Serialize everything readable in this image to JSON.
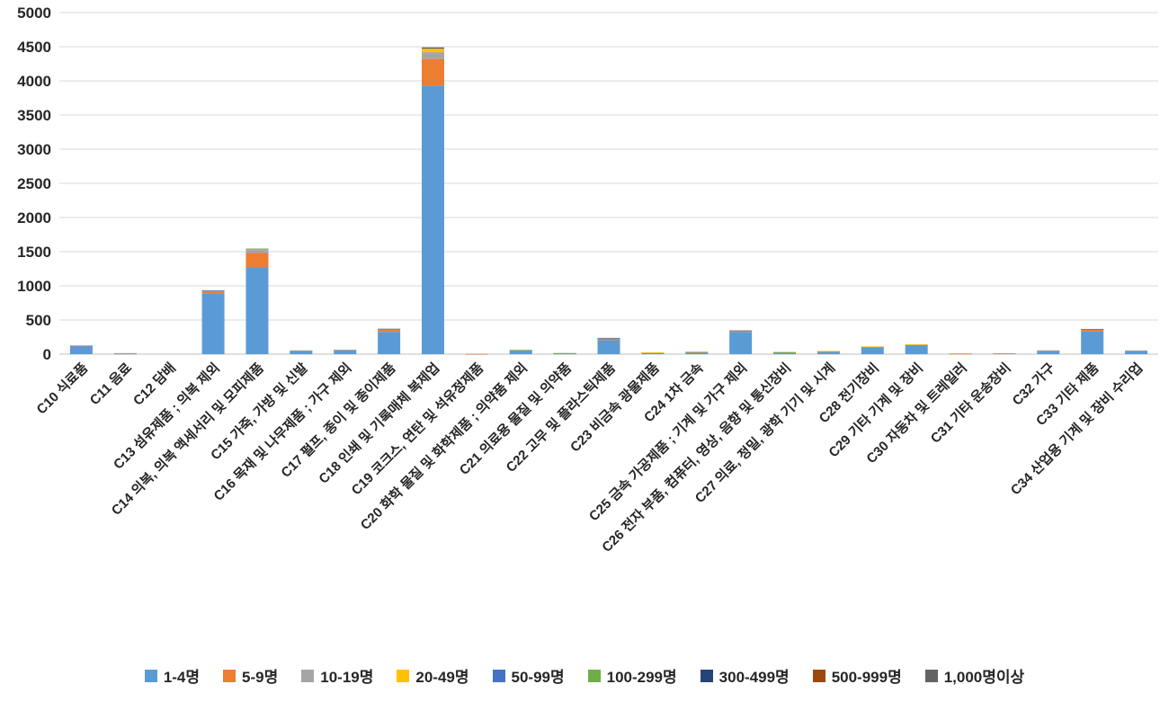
{
  "page": {
    "background": "#FFFFFF"
  },
  "chart_data": {
    "type": "bar",
    "stacked": true,
    "title": "",
    "xlabel": "",
    "ylabel": "",
    "grid": true,
    "legend_position": "bottom",
    "ylim": [
      0,
      5000
    ],
    "yticks": [
      0,
      500,
      1000,
      1500,
      2000,
      2500,
      3000,
      3500,
      4000,
      4500,
      5000
    ],
    "categories": [
      "C10 식료품",
      "C11 음료",
      "C12 담배",
      "C13 섬유제품 ; 의복 제외",
      "C14 의복, 의복 액세서리 및 모피제품",
      "C15 가죽, 가방 및 신발",
      "C16 목재 및 나무제품 ; 가구 제외",
      "C17 펄프, 종이 및 종이제품",
      "C18 인쇄 및 기록매체 복제업",
      "C19 코크스, 연탄 및 석유정제품",
      "C20 화학 물질 및 화학제품 ; 의약품 제외",
      "C21 의료용 물질 및 의약품",
      "C22 고무 및 플라스틱제품",
      "C23 비금속 광물제품",
      "C24 1차 금속",
      "C25 금속 가공제품 ; 기계 및 가구 제외",
      "C26 전자 부품, 컴퓨터, 영상, 음향 및 통신장비",
      "C27 의료, 정밀, 광학 기기 및 시계",
      "C28 전기장비",
      "C29 기타 기계 및 장비",
      "C30 자동차 및 트레일러",
      "C31 기타 운송장비",
      "C32 가구",
      "C33 기타 제품",
      "C34 산업용 기계 및 장비 수리업"
    ],
    "series": [
      {
        "name": "1-4명",
        "color": "#5B9BD5",
        "values": [
          120,
          8,
          0,
          890,
          1270,
          50,
          58,
          325,
          3930,
          3,
          50,
          8,
          205,
          20,
          30,
          325,
          20,
          40,
          100,
          135,
          8,
          10,
          50,
          330,
          50
        ]
      },
      {
        "name": "5-9명",
        "color": "#ED7D31",
        "values": [
          8,
          6,
          0,
          30,
          210,
          4,
          5,
          30,
          390,
          1,
          6,
          3,
          25,
          4,
          4,
          15,
          4,
          4,
          10,
          5,
          1,
          3,
          4,
          30,
          3
        ]
      },
      {
        "name": "10-19명",
        "color": "#A5A5A5",
        "values": [
          2,
          1,
          0,
          8,
          45,
          1,
          1,
          8,
          100,
          0,
          2,
          1,
          5,
          1,
          2,
          4,
          2,
          2,
          2,
          2,
          0,
          1,
          1,
          5,
          1
        ]
      },
      {
        "name": "20-49명",
        "color": "#FFC000",
        "values": [
          1,
          0,
          0,
          3,
          15,
          0,
          0,
          8,
          55,
          0,
          1,
          1,
          2,
          1,
          1,
          2,
          1,
          1,
          1,
          1,
          0,
          0,
          0,
          3,
          0
        ]
      },
      {
        "name": "50-99명",
        "color": "#4472C4",
        "values": [
          0,
          0,
          0,
          1,
          3,
          0,
          0,
          1,
          10,
          0,
          1,
          1,
          1,
          0,
          0,
          1,
          1,
          0,
          0,
          0,
          0,
          0,
          0,
          1,
          0
        ]
      },
      {
        "name": "100-299명",
        "color": "#70AD47",
        "values": [
          0,
          0,
          0,
          0,
          1,
          0,
          0,
          0,
          3,
          0,
          1,
          2,
          0,
          0,
          0,
          0,
          2,
          0,
          0,
          0,
          0,
          0,
          0,
          0,
          0
        ]
      },
      {
        "name": "300-499명",
        "color": "#264478",
        "values": [
          0,
          0,
          0,
          0,
          0,
          0,
          0,
          0,
          1,
          0,
          0,
          0,
          0,
          0,
          0,
          0,
          0,
          0,
          0,
          0,
          0,
          0,
          0,
          0,
          0
        ]
      },
      {
        "name": "500-999명",
        "color": "#9E480E",
        "values": [
          0,
          0,
          0,
          0,
          0,
          0,
          0,
          0,
          0,
          0,
          0,
          0,
          0,
          0,
          0,
          0,
          0,
          0,
          0,
          0,
          0,
          0,
          0,
          0,
          0
        ]
      },
      {
        "name": "1,000명이상",
        "color": "#636363",
        "values": [
          0,
          0,
          0,
          0,
          0,
          0,
          0,
          0,
          0,
          0,
          0,
          0,
          0,
          0,
          0,
          0,
          0,
          0,
          0,
          0,
          0,
          0,
          0,
          0,
          0
        ]
      }
    ]
  }
}
